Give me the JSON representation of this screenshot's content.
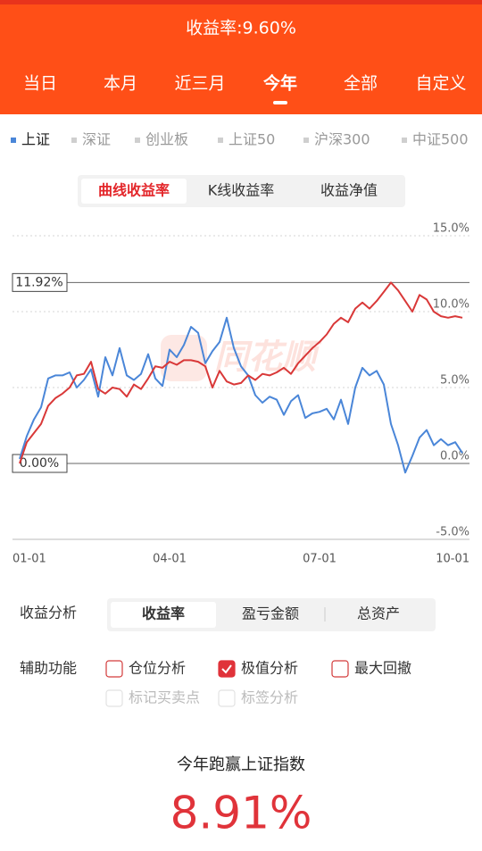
{
  "header": {
    "title": "收益率:9.60%",
    "tabs": [
      "当日",
      "本月",
      "近三月",
      "今年",
      "全部",
      "自定义"
    ],
    "selected_tab": 3
  },
  "index_tabs": {
    "items": [
      "上证",
      "深证",
      "创业板",
      "上证50",
      "沪深300",
      "中证500"
    ],
    "selected": 0
  },
  "chart_modes": {
    "items": [
      "曲线收益率",
      "K线收益率",
      "收益净值"
    ],
    "selected": 0
  },
  "chart_data": {
    "type": "line",
    "watermark": "同花顺",
    "categories": [
      "01-01",
      null,
      null,
      null,
      null,
      null,
      null,
      null,
      null,
      null,
      null,
      null,
      null,
      null,
      null,
      null,
      null,
      null,
      null,
      null,
      null,
      null,
      "04-01",
      null,
      null,
      null,
      null,
      null,
      null,
      null,
      null,
      null,
      null,
      null,
      null,
      null,
      null,
      null,
      null,
      null,
      null,
      null,
      null,
      "07-01",
      null,
      null,
      null,
      null,
      null,
      null,
      null,
      null,
      null,
      null,
      null,
      null,
      null,
      null,
      null,
      null,
      null,
      null,
      null,
      null,
      "10-01"
    ],
    "series": [
      {
        "color": "#4a86d8",
        "values": [
          null,
          0.3,
          1.8,
          2.9,
          3.7,
          5.6,
          5.8,
          5.8,
          6.0,
          5.0,
          5.5,
          6.2,
          4.4,
          7.0,
          5.8,
          7.6,
          5.8,
          5.5,
          5.9,
          7.2,
          5.6,
          5.1,
          7.5,
          7.0,
          7.8,
          9.0,
          8.6,
          6.6,
          7.4,
          8.0,
          9.6,
          7.6,
          6.4,
          5.8,
          4.5,
          4.0,
          4.4,
          4.2,
          3.2,
          4.1,
          4.5,
          3.0,
          3.3,
          3.4,
          3.6,
          2.9,
          4.2,
          2.6,
          5.0,
          6.3,
          5.8,
          6.1,
          5.2,
          2.6,
          1.2,
          -0.6,
          0.5,
          1.7,
          2.2,
          1.2,
          1.6,
          1.2,
          1.4,
          0.69,
          null
        ]
      },
      {
        "color": "#d93838",
        "values": [
          null,
          0,
          1.4,
          2.0,
          2.6,
          3.8,
          4.3,
          4.6,
          5.0,
          5.8,
          5.9,
          6.7,
          4.9,
          4.6,
          5.0,
          4.9,
          4.4,
          5.2,
          4.9,
          5.6,
          6.4,
          6.3,
          6.7,
          6.5,
          6.8,
          6.8,
          6.7,
          6.4,
          5.0,
          6.1,
          5.4,
          5.2,
          5.3,
          5.8,
          5.5,
          5.9,
          5.8,
          6.0,
          6.3,
          5.9,
          6.6,
          7.1,
          7.6,
          8.0,
          8.5,
          9.2,
          9.6,
          9.3,
          10.2,
          10.6,
          10.2,
          10.7,
          11.3,
          11.92,
          11.4,
          10.7,
          10.0,
          11.1,
          10.8,
          10.0,
          9.7,
          9.6,
          9.7,
          9.6,
          null
        ]
      }
    ],
    "ylim": [
      -5,
      15
    ],
    "yticks": [
      {
        "value": 15,
        "label": "15.0%"
      },
      {
        "value": 10,
        "label": "10.0%"
      },
      {
        "value": 5,
        "label": "5.0%"
      },
      {
        "value": 0,
        "label": "0.0%"
      },
      {
        "value": -5,
        "label": "-5.0%"
      }
    ],
    "grid": true,
    "reference_lines": [
      {
        "value": 11.92,
        "label": "11.92%"
      },
      {
        "value": 0,
        "label": "0.00%"
      }
    ]
  },
  "analysis": {
    "label": "收益分析",
    "options": [
      "收益率",
      "盈亏金额",
      "总资产"
    ],
    "selected": 0
  },
  "aux": {
    "label": "辅助功能",
    "options": [
      {
        "label": "仓位分析",
        "checked": false,
        "enabled": true
      },
      {
        "label": "极值分析",
        "checked": true,
        "enabled": true
      },
      {
        "label": "最大回撤",
        "checked": false,
        "enabled": true
      },
      {
        "label": "标记买卖点",
        "checked": false,
        "enabled": false
      },
      {
        "label": "标签分析",
        "checked": false,
        "enabled": false
      }
    ]
  },
  "result": {
    "caption": "今年跑赢上证指数",
    "value": "8.91%"
  }
}
